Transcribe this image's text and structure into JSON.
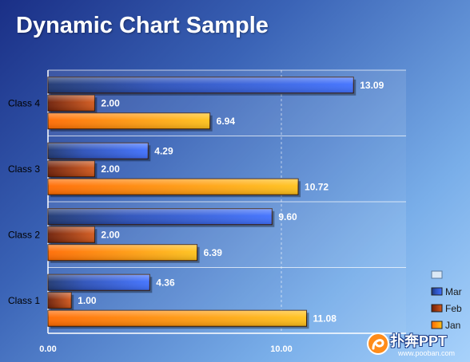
{
  "chart_data": {
    "type": "bar",
    "orientation": "horizontal",
    "title": "Dynamic Chart Sample",
    "categories": [
      "Class 1",
      "Class 2",
      "Class 3",
      "Class 4"
    ],
    "series": [
      {
        "name": "Jan",
        "values": [
          11.08,
          6.39,
          10.72,
          6.94
        ],
        "labels": [
          "11.08",
          "6.39",
          "10.72",
          "6.94"
        ],
        "color": "#ff9a1a"
      },
      {
        "name": "Feb",
        "values": [
          1.0,
          2.0,
          2.0,
          2.0
        ],
        "labels": [
          "1.00",
          "2.00",
          "2.00",
          "2.00"
        ],
        "color": "#b8440f"
      },
      {
        "name": "Mar",
        "values": [
          4.36,
          9.6,
          4.29,
          13.09
        ],
        "labels": [
          "4.36",
          "9.60",
          "4.29",
          "13.09"
        ],
        "color": "#2f5de8"
      }
    ],
    "xlim": [
      0,
      15
    ],
    "xticks": [
      0,
      10
    ],
    "xtick_labels": [
      "0.00",
      "10.00"
    ],
    "grid": true,
    "legend_position": "right",
    "legend_extra_entry": ""
  },
  "watermark": {
    "brand": "扑奔PPT",
    "url": "www.pooban.com"
  }
}
